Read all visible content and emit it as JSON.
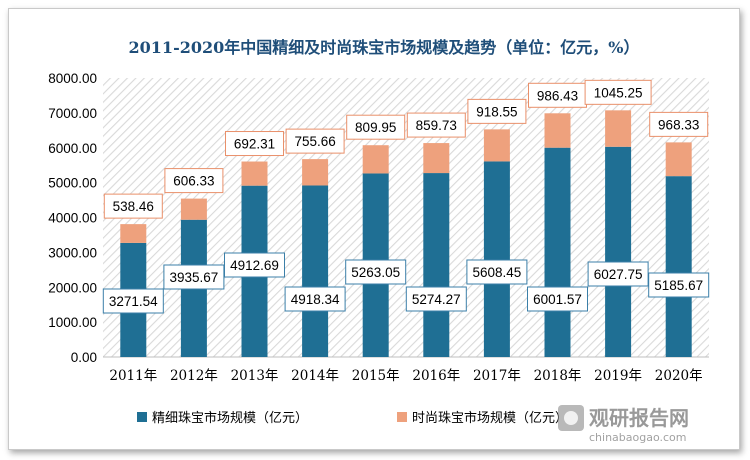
{
  "chart_data": {
    "type": "bar",
    "stacked": true,
    "title": "2011-2020年中国精细及时尚珠宝市场规模及趋势（单位：亿元，%）",
    "categories": [
      "2011年",
      "2012年",
      "2013年",
      "2014年",
      "2015年",
      "2016年",
      "2017年",
      "2018年",
      "2019年",
      "2020年"
    ],
    "series": [
      {
        "name": "精细珠宝市场规模（亿元）",
        "color": "#1f6f94",
        "values": [
          3271.54,
          3935.67,
          4912.69,
          4918.34,
          5263.05,
          5274.27,
          5608.45,
          6001.57,
          6027.75,
          5185.67
        ],
        "labels": [
          "3271.54",
          "3935.67",
          "4912.69",
          "4918.34",
          "5263.05",
          "5274.27",
          "5608.45",
          "6001.57",
          "6027.75",
          "5185.67"
        ]
      },
      {
        "name": "时尚珠宝市场规模（亿元）",
        "color": "#eea17d",
        "values": [
          538.46,
          606.33,
          692.31,
          755.66,
          809.95,
          859.73,
          918.55,
          986.43,
          1045.25,
          968.33
        ],
        "labels": [
          "538.46",
          "606.33",
          "692.31",
          "755.66",
          "809.95",
          "859.73",
          "918.55",
          "986.43",
          "1045.25",
          "968.33"
        ]
      }
    ],
    "yticks": [
      "0.00",
      "1000.00",
      "2000.00",
      "3000.00",
      "4000.00",
      "5000.00",
      "6000.00",
      "7000.00",
      "8000.00"
    ],
    "ylim": [
      0,
      8000
    ],
    "grid": "hatched-background",
    "legend": "bottom-left"
  },
  "watermark": {
    "text": "观研报告网",
    "url": "chinabaogao.com"
  }
}
